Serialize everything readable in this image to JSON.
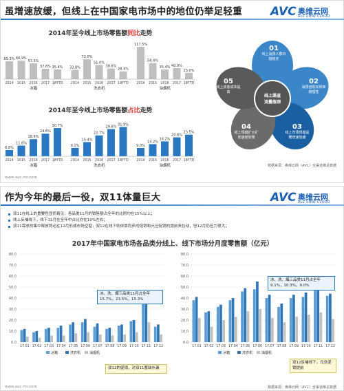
{
  "slide1": {
    "title": "虽增速放缓，但线上在中国家电市场中的地位仍举足轻重",
    "logo": {
      "avc": "AVC",
      "cn": "奥维云网",
      "en": "ALL VIEW CLOUD"
    },
    "source": "数据来源：奥维云网（AVC）全渠道推总数据",
    "footer": "www.avc-mr.com",
    "flower": {
      "center": "线上渠道\n流量瓶颈",
      "petals": [
        {
          "num": "01",
          "text": "线上消费人群日趋稳定"
        },
        {
          "num": "02",
          "text": "消费者购买频率趋理性"
        },
        {
          "num": "03",
          "text": "线上市场规模是著增速放缓"
        },
        {
          "num": "04",
          "text": "线上规模扩大扩张速度受慢"
        },
        {
          "num": "05",
          "text": "线上获客成本提高"
        }
      ]
    }
  },
  "slide2": {
    "title": "作为今年的最后一役，双11体量巨大",
    "logo": {
      "avc": "AVC",
      "cn": "奥维云网",
      "en": "ALL VIEW CLOUD"
    },
    "bullets": [
      {
        "pre": "双11在线上的重要性显而易见，各品类11月的销售额占全年的比例均在15%以上；",
        "red": "",
        "post": ""
      },
      {
        "pre": "线上反哺线下，线下11月在全年中占比亦在10%左右；",
        "red": "",
        "post": ""
      },
      {
        "pre": "双11需求的集中释放势必在12月形成市场空窗，双12在线下则依靠同步的促销和元旦促销的提前来拉动，但12月仍压力很大；",
        "red": "",
        "post": ""
      }
    ],
    "callout_left": "冰、洗、烟三品类11月占全年15.7%，23.5%，15.3%",
    "callout_right": "冰、洗、烟三品类11月占全年9.1%，10.3%，9.0%",
    "note_left": "双12的促销，对双11蓄缺补漏",
    "note_right": "双12反哺线下，元旦促销提前",
    "source": "数据来源：奥维云网（AVC）全渠道推总数据",
    "footer": "www.avc-mr.com"
  },
  "chart_data": [
    {
      "type": "bar",
      "title": "2014年至今线上市场零售额同比走势",
      "title_highlight": "同比",
      "groups": [
        "冰箱",
        "洗衣机",
        "油烟机"
      ],
      "categories": [
        "2014",
        "2015",
        "2016",
        "2017",
        "18YTD"
      ],
      "values": [
        [
          65.3,
          66.9,
          57.5,
          37.6,
          35.4
        ],
        [
          33.8,
          72.0,
          51.0,
          38.6,
          28.4
        ],
        [
          117.5,
          58.4,
          35.4,
          40.0,
          23.0
        ]
      ],
      "labels": [
        [
          "65.3%",
          "66.9%",
          "57.5%",
          "37.6%",
          "35.4%"
        ],
        [
          "33.8%",
          "72.0%",
          "51.0%",
          "38.6%",
          "28.4%"
        ],
        [
          "117.5%",
          "58.4%",
          "35.4%",
          "40.0%",
          "23.0%"
        ]
      ],
      "color": "#bfbfbf"
    },
    {
      "type": "bar",
      "title": "2014年至今线上市场零售额占比走势",
      "title_highlight": "占比",
      "groups": [
        "冰箱",
        "洗衣机",
        "油烟机"
      ],
      "categories": [
        "2014",
        "2015",
        "2016",
        "2017",
        "18YTD"
      ],
      "values": [
        [
          6.8,
          11.6,
          18.6,
          24.6,
          30.7
        ],
        [
          9.1,
          15.4,
          22.7,
          29.6,
          31.9
        ],
        [
          9.0,
          13.2,
          16.2,
          20.6,
          23.5
        ]
      ],
      "labels": [
        [
          "6.8%",
          "11.6%",
          "18.6%",
          "24.6%",
          "30.7%"
        ],
        [
          "9.1%",
          "15.4%",
          "22.7%",
          "29.6%",
          "31.9%"
        ],
        [
          "9.0%",
          "13.2%",
          "16.2%",
          "20.6%",
          "23.5%"
        ]
      ],
      "color": "#2b78c2"
    },
    {
      "type": "bar",
      "title": "2017年中国家电市场各品类分线上、线下市场分月度零售额（亿元）",
      "panel": "线上",
      "categories": [
        "17.01",
        "17.02",
        "17.03",
        "17.04",
        "17.05",
        "17.06",
        "17.07",
        "17.08",
        "17.09",
        "17.10",
        "17.11",
        "17.12"
      ],
      "ylim": [
        0,
        80
      ],
      "yticks": [
        "0.0",
        "10.0",
        "20.0",
        "30.0",
        "40.0",
        "50.0",
        "60.0",
        "70.0",
        "80.0"
      ],
      "series": [
        {
          "name": "冰箱",
          "color": "#5b9bd5",
          "values": [
            11,
            9,
            12,
            13,
            16,
            18,
            14,
            12,
            15,
            19,
            43,
            14
          ]
        },
        {
          "name": "洗衣机",
          "color": "#2e75b6",
          "values": [
            12,
            10,
            13,
            15,
            18,
            21,
            17,
            13,
            16,
            20,
            44,
            16
          ]
        },
        {
          "name": "油烟机",
          "color": "#bfbfbf",
          "values": [
            5,
            4,
            6,
            6,
            8,
            9,
            7,
            6,
            7,
            9,
            18,
            7
          ]
        }
      ]
    },
    {
      "type": "bar",
      "panel": "线下",
      "categories": [
        "17.01",
        "17.02",
        "17.03",
        "17.04",
        "17.05",
        "17.06",
        "17.07",
        "17.08",
        "17.09",
        "17.10",
        "17.11",
        "17.12"
      ],
      "ylim": [
        0,
        80
      ],
      "yticks": [
        "0.0",
        "10.0",
        "20.0",
        "30.0",
        "40.0",
        "50.0",
        "60.0",
        "70.0",
        "80.0"
      ],
      "series": [
        {
          "name": "冰箱",
          "color": "#5b9bd5",
          "values": [
            38,
            27,
            32,
            38,
            46,
            48,
            40,
            32,
            40,
            41,
            51,
            42
          ]
        },
        {
          "name": "洗衣机",
          "color": "#2e75b6",
          "values": [
            41,
            28,
            34,
            40,
            49,
            55,
            43,
            35,
            43,
            45,
            52,
            44
          ]
        },
        {
          "name": "油烟机",
          "color": "#bfbfbf",
          "values": [
            22,
            14,
            20,
            23,
            28,
            30,
            22,
            18,
            23,
            25,
            27,
            21
          ]
        }
      ]
    }
  ]
}
